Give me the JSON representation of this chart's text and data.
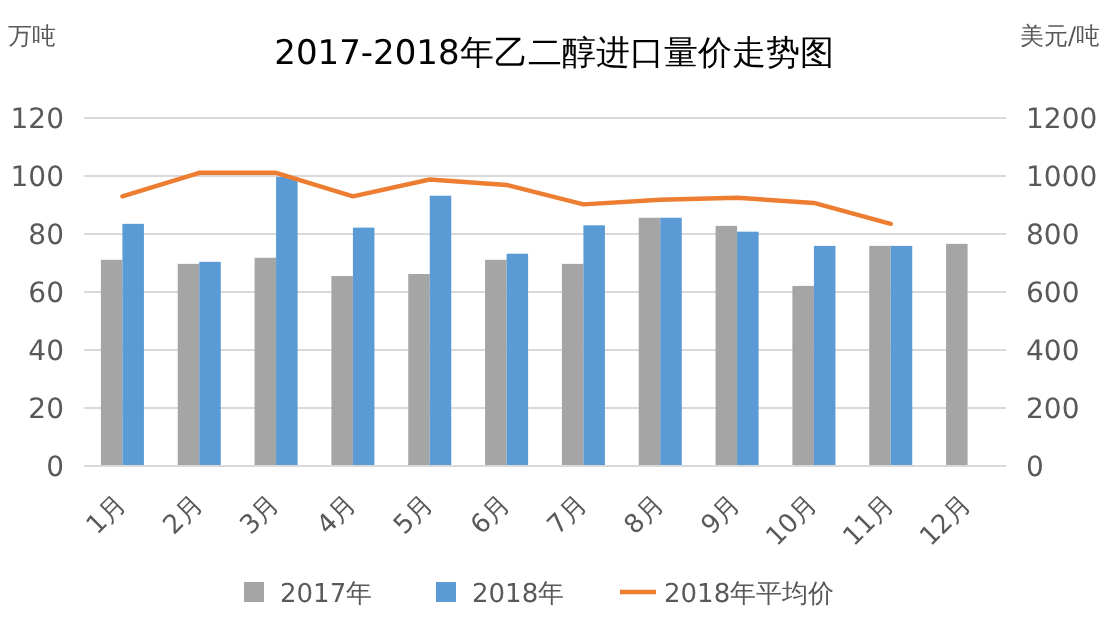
{
  "chart_data": {
    "type": "bar",
    "title": "2017-2018年乙二醇进口量价走势图",
    "ylabel": "万吨",
    "y2label": "美元/吨",
    "categories": [
      "1月",
      "2月",
      "3月",
      "4月",
      "5月",
      "6月",
      "7月",
      "8月",
      "9月",
      "10月",
      "11月",
      "12月"
    ],
    "series": [
      {
        "name": "2017年",
        "color": "#a5a5a5",
        "values": [
          71.1,
          69.7,
          71.8,
          65.5,
          66.2,
          71.1,
          69.7,
          85.6,
          82.8,
          62.1,
          75.9,
          76.6
        ]
      },
      {
        "name": "2018年",
        "color": "#5b9bd5",
        "values": [
          83.5,
          70.4,
          99.7,
          82.2,
          93.2,
          73.2,
          83,
          85.6,
          80.8,
          75.9,
          75.9,
          null
        ]
      },
      {
        "name": "2018年平均价",
        "color": "#ed7d31",
        "type": "line",
        "axis": "y2",
        "values": [
          930,
          1011,
          1011,
          930,
          988,
          969,
          902,
          918,
          925,
          907,
          835,
          null
        ]
      }
    ],
    "ylim": [
      0,
      120
    ],
    "yticks": [
      0,
      20,
      40,
      60,
      80,
      100,
      120
    ],
    "y2lim": [
      0,
      1200
    ],
    "y2ticks": [
      0,
      200,
      400,
      600,
      800,
      1000,
      1200
    ],
    "grid": "y",
    "legend": "bottom",
    "marker": "none",
    "line_style": "solid"
  }
}
